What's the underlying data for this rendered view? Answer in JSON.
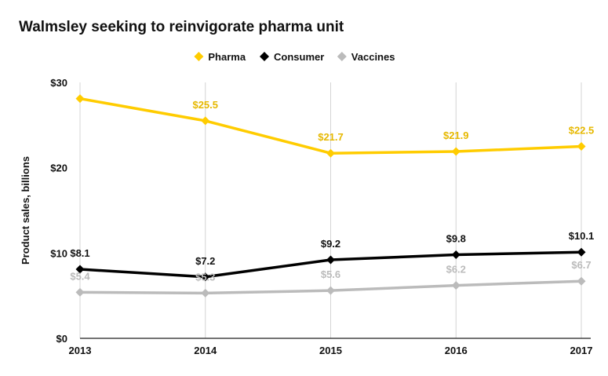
{
  "chart_data": {
    "type": "line",
    "title": "Walmsley seeking to reinvigorate pharma unit",
    "ylabel": "Product sales, billions",
    "xlabel": "",
    "categories": [
      "2013",
      "2014",
      "2015",
      "2016",
      "2017"
    ],
    "ylim": [
      0,
      30
    ],
    "yticks": [
      0,
      10,
      20,
      30
    ],
    "ytick_labels": [
      "$0",
      "$10",
      "$20",
      "$30"
    ],
    "grid": "vertical",
    "legend_position": "top",
    "series": [
      {
        "name": "Pharma",
        "color": "#FFCC00",
        "values": [
          28.1,
          25.5,
          21.7,
          21.9,
          22.5
        ],
        "labels": [
          "",
          "$25.5",
          "$21.7",
          "$21.9",
          "$22.5"
        ]
      },
      {
        "name": "Consumer",
        "color": "#000000",
        "values": [
          8.1,
          7.2,
          9.2,
          9.8,
          10.1
        ],
        "labels": [
          "$8.1",
          "$7.2",
          "$9.2",
          "$9.8",
          "$10.1"
        ]
      },
      {
        "name": "Vaccines",
        "color": "#BBBBBB",
        "values": [
          5.4,
          5.3,
          5.6,
          6.2,
          6.7
        ],
        "labels": [
          "$5.4",
          "$5.3",
          "$5.6",
          "$6.2",
          "$6.7"
        ]
      }
    ]
  }
}
